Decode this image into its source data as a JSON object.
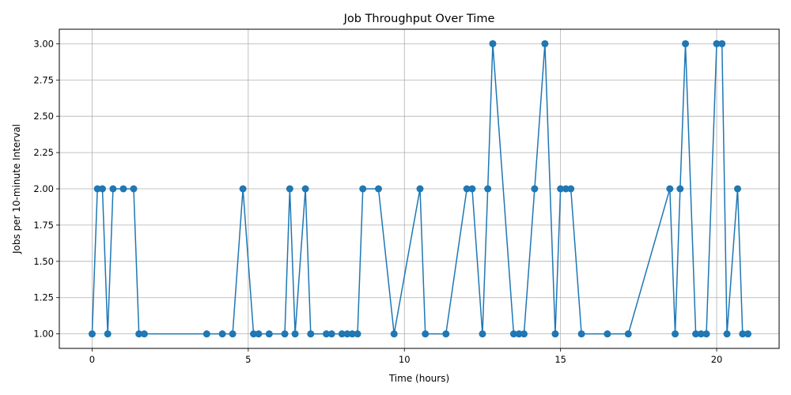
{
  "chart_data": {
    "type": "line",
    "title": "Job Throughput Over Time",
    "xlabel": "Time (hours)",
    "ylabel": "Jobs per 10-minute Interval",
    "xlim": [
      -1.05,
      22.0
    ],
    "ylim": [
      0.9,
      3.1
    ],
    "xticks": [
      0,
      5,
      10,
      15,
      20
    ],
    "xtick_labels": [
      "0",
      "5",
      "10",
      "15",
      "20"
    ],
    "yticks": [
      1.0,
      1.25,
      1.5,
      1.75,
      2.0,
      2.25,
      2.5,
      2.75,
      3.0
    ],
    "ytick_labels": [
      "1.00",
      "1.25",
      "1.50",
      "1.75",
      "2.00",
      "2.25",
      "2.50",
      "2.75",
      "3.00"
    ],
    "grid": true,
    "line_color": "#1f77b4",
    "marker": "circle",
    "series": [
      {
        "x": [
          0.0,
          0.17,
          0.33,
          0.5,
          0.67,
          1.0,
          1.33,
          1.5,
          1.67,
          3.67,
          4.17,
          4.5,
          4.83,
          5.17,
          5.33,
          5.67,
          6.17,
          6.33,
          6.5,
          6.83,
          7.0,
          7.5,
          7.67,
          8.0,
          8.17,
          8.33,
          8.5,
          8.67,
          9.17,
          9.67,
          10.5,
          10.67,
          11.33,
          12.0,
          12.17,
          12.5,
          12.67,
          12.83,
          13.5,
          13.67,
          13.83,
          14.17,
          14.5,
          14.83,
          15.0,
          15.17,
          15.33,
          15.67,
          16.5,
          17.17,
          18.5,
          18.67,
          18.83,
          19.0,
          19.33,
          19.5,
          19.67,
          20.0,
          20.17,
          20.33,
          20.67,
          20.83,
          21.0
        ],
        "y": [
          1,
          2,
          2,
          1,
          2,
          2,
          2,
          1,
          1,
          1,
          1,
          1,
          2,
          1,
          1,
          1,
          1,
          2,
          1,
          2,
          1,
          1,
          1,
          1,
          1,
          1,
          1,
          2,
          2,
          1,
          2,
          1,
          1,
          2,
          2,
          1,
          2,
          3,
          1,
          1,
          1,
          2,
          3,
          1,
          2,
          2,
          2,
          1,
          1,
          1,
          2,
          1,
          2,
          3,
          1,
          1,
          1,
          3,
          3,
          1,
          2,
          1,
          1
        ]
      }
    ]
  }
}
